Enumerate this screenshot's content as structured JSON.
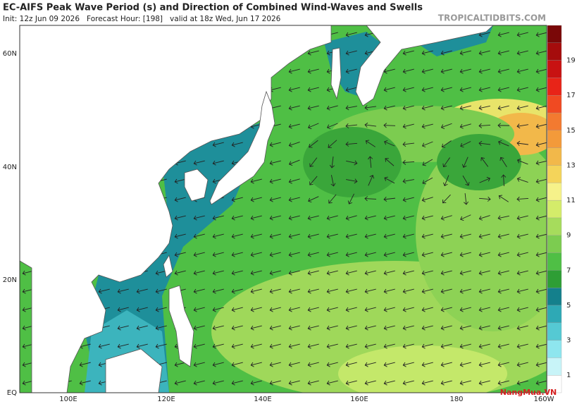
{
  "header": {
    "title": "EC-AIFS Peak Wave Period (s) and Direction of Combined Wind-Waves and Swells",
    "subtitle": "Init: 12z Jun 09 2026   Forecast Hour: [198]   valid at 18z Wed, Jun 17 2026",
    "source": "TROPICALTIDBITS.COM"
  },
  "axes": {
    "lat_labels": [
      "60N",
      "40N",
      "20N",
      "EQ"
    ],
    "lon_labels": [
      "100E",
      "120E",
      "140E",
      "160E",
      "180",
      "160W"
    ]
  },
  "colorbar": {
    "labels": [
      19,
      17,
      15,
      13,
      11,
      9,
      7,
      5,
      3,
      1
    ]
  },
  "logo": "NangMua.VN"
}
